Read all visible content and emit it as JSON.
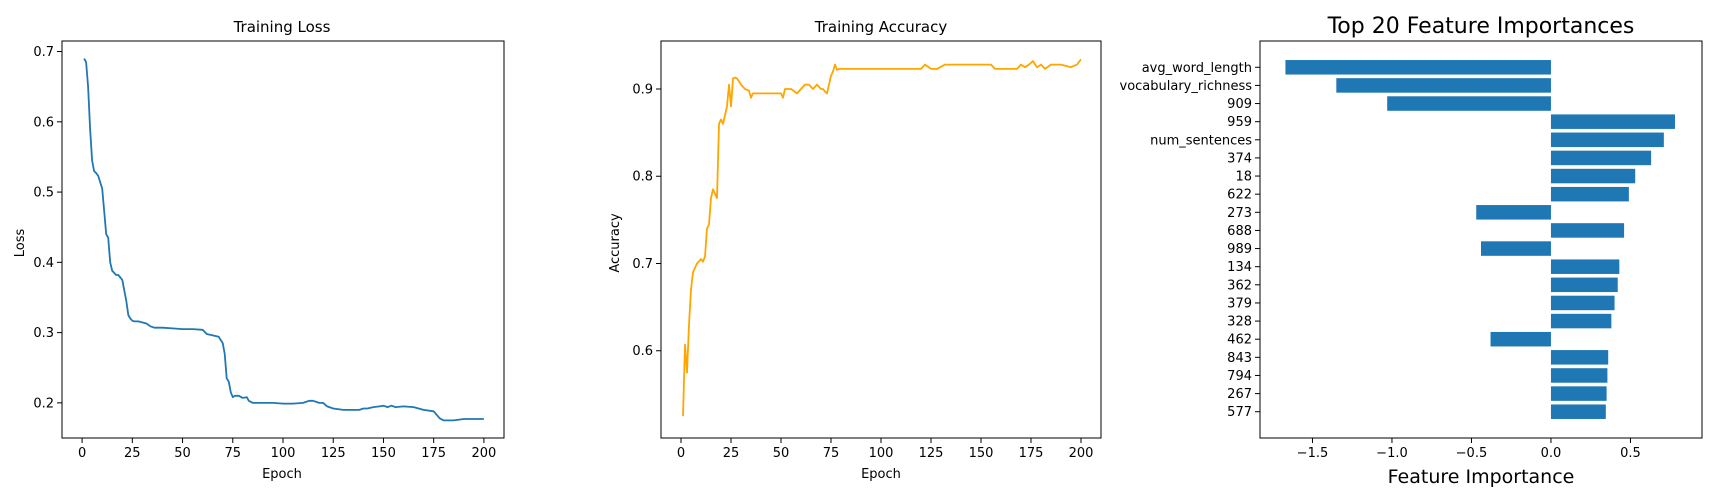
{
  "chart_data": [
    {
      "type": "line",
      "title": "Training Loss",
      "xlabel": "Epoch",
      "ylabel": "Loss",
      "xlim": [
        -10,
        210
      ],
      "ylim": [
        0.15,
        0.715
      ],
      "xticks": [
        0,
        25,
        50,
        75,
        100,
        125,
        150,
        175,
        200
      ],
      "yticks": [
        0.2,
        0.3,
        0.4,
        0.5,
        0.6,
        0.7
      ],
      "ytick_decimals": 1,
      "color": "#1f77b4",
      "series": [
        {
          "x": [
            1,
            2,
            3,
            4,
            5,
            6,
            7,
            8,
            10,
            12,
            13,
            14,
            15,
            16,
            17,
            18,
            20,
            22,
            23,
            24,
            25,
            26,
            28,
            32,
            34,
            36,
            40,
            45,
            50,
            55,
            60,
            62,
            65,
            68,
            70,
            71,
            72,
            73,
            74,
            75,
            76,
            77,
            78,
            80,
            82,
            83,
            85,
            86,
            88,
            90,
            95,
            100,
            105,
            110,
            113,
            115,
            118,
            120,
            122,
            125,
            130,
            135,
            138,
            140,
            142,
            145,
            148,
            150,
            152,
            154,
            156,
            160,
            165,
            170,
            175,
            178,
            180,
            185,
            190,
            195,
            200
          ],
          "y": [
            0.69,
            0.685,
            0.65,
            0.59,
            0.545,
            0.53,
            0.527,
            0.523,
            0.505,
            0.44,
            0.435,
            0.4,
            0.388,
            0.385,
            0.382,
            0.382,
            0.375,
            0.345,
            0.325,
            0.32,
            0.317,
            0.316,
            0.316,
            0.313,
            0.309,
            0.307,
            0.307,
            0.306,
            0.305,
            0.305,
            0.304,
            0.298,
            0.296,
            0.294,
            0.285,
            0.27,
            0.235,
            0.23,
            0.215,
            0.208,
            0.21,
            0.21,
            0.21,
            0.207,
            0.208,
            0.203,
            0.2,
            0.2,
            0.2,
            0.2,
            0.2,
            0.199,
            0.199,
            0.2,
            0.203,
            0.203,
            0.2,
            0.2,
            0.195,
            0.192,
            0.19,
            0.19,
            0.19,
            0.192,
            0.192,
            0.194,
            0.195,
            0.196,
            0.194,
            0.196,
            0.194,
            0.195,
            0.194,
            0.19,
            0.188,
            0.178,
            0.175,
            0.175,
            0.177,
            0.177,
            0.177
          ]
        }
      ]
    },
    {
      "type": "line",
      "title": "Training Accuracy",
      "xlabel": "Epoch",
      "ylabel": "Accuracy",
      "xlim": [
        -10,
        210
      ],
      "ylim": [
        0.5,
        0.955
      ],
      "xticks": [
        0,
        25,
        50,
        75,
        100,
        125,
        150,
        175,
        200
      ],
      "yticks": [
        0.6,
        0.7,
        0.8,
        0.9
      ],
      "ytick_decimals": 1,
      "color": "#ffa500",
      "series": [
        {
          "x": [
            1,
            2,
            3,
            4,
            5,
            6,
            8,
            10,
            11,
            12,
            13,
            14,
            15,
            16,
            17,
            18,
            19,
            20,
            21,
            22,
            23,
            24,
            25,
            26,
            27,
            28,
            30,
            32,
            34,
            35,
            36,
            38,
            40,
            45,
            50,
            51,
            52,
            55,
            58,
            60,
            62,
            64,
            66,
            68,
            70,
            71,
            72,
            73,
            74,
            75,
            76,
            77,
            78,
            79,
            80,
            90,
            100,
            110,
            120,
            122,
            125,
            128,
            132,
            135,
            140,
            150,
            155,
            157,
            160,
            165,
            168,
            170,
            172,
            174,
            176,
            178,
            180,
            182,
            185,
            190,
            195,
            198,
            200
          ],
          "y": [
            0.525,
            0.607,
            0.575,
            0.63,
            0.67,
            0.69,
            0.7,
            0.705,
            0.702,
            0.708,
            0.74,
            0.745,
            0.775,
            0.785,
            0.78,
            0.775,
            0.86,
            0.865,
            0.86,
            0.87,
            0.88,
            0.905,
            0.88,
            0.912,
            0.913,
            0.912,
            0.905,
            0.9,
            0.898,
            0.89,
            0.895,
            0.895,
            0.895,
            0.895,
            0.895,
            0.89,
            0.9,
            0.9,
            0.895,
            0.9,
            0.905,
            0.905,
            0.9,
            0.905,
            0.9,
            0.9,
            0.897,
            0.895,
            0.905,
            0.915,
            0.92,
            0.928,
            0.922,
            0.923,
            0.923,
            0.923,
            0.923,
            0.923,
            0.923,
            0.928,
            0.923,
            0.923,
            0.928,
            0.928,
            0.928,
            0.928,
            0.928,
            0.923,
            0.923,
            0.923,
            0.923,
            0.928,
            0.925,
            0.928,
            0.932,
            0.925,
            0.928,
            0.923,
            0.928,
            0.928,
            0.925,
            0.928,
            0.934
          ]
        }
      ]
    },
    {
      "type": "bar",
      "orientation": "horizontal",
      "title": "Top 20 Feature Importances",
      "xlabel": "Feature Importance",
      "ylabel": "",
      "xlim": [
        -1.83,
        0.95
      ],
      "xticks": [
        -1.5,
        -1.0,
        -0.5,
        0.0,
        0.5
      ],
      "xtick_decimals": 1,
      "color": "#1f77b4",
      "categories": [
        "avg_word_length",
        "vocabulary_richness",
        "909",
        "959",
        "num_sentences",
        "374",
        "18",
        "622",
        "273",
        "688",
        "989",
        "134",
        "362",
        "379",
        "328",
        "462",
        "843",
        "794",
        "267",
        "577"
      ],
      "values": [
        -1.67,
        -1.35,
        -1.03,
        0.78,
        0.71,
        0.63,
        0.53,
        0.49,
        -0.47,
        0.46,
        -0.44,
        0.43,
        0.42,
        0.4,
        0.38,
        -0.38,
        0.36,
        0.355,
        0.35,
        0.345
      ]
    }
  ]
}
